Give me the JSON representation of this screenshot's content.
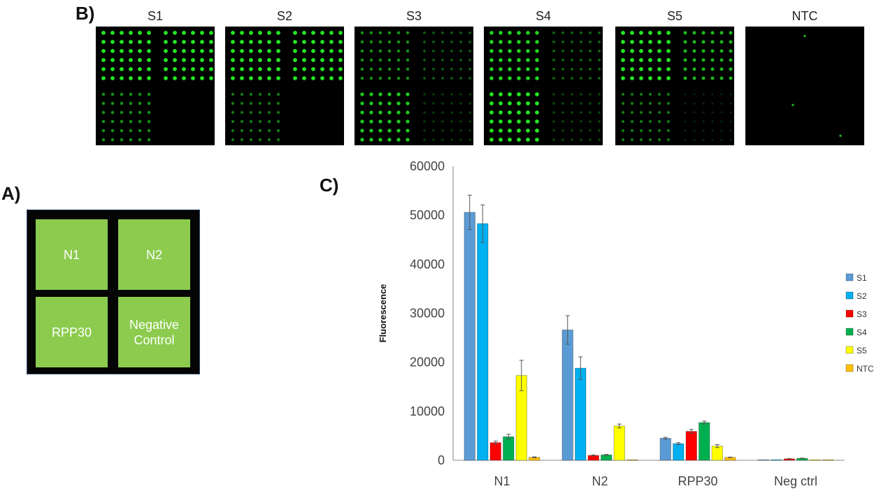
{
  "panel_labels": {
    "a": "A)",
    "b": "B)",
    "c": "C)"
  },
  "arrays": {
    "samples": [
      {
        "name": "S1",
        "tl": 1.0,
        "tr": 1.0,
        "bl": 0.55,
        "br": 0.0,
        "extras": []
      },
      {
        "name": "S2",
        "tl": 1.0,
        "tr": 1.0,
        "bl": 0.45,
        "br": 0.0,
        "extras": []
      },
      {
        "name": "S3",
        "tl": 0.55,
        "tr": 0.3,
        "bl": 0.85,
        "br": 0.15,
        "extras": []
      },
      {
        "name": "S4",
        "tl": 0.9,
        "tr": 0.35,
        "bl": 1.0,
        "br": 0.2,
        "extras": []
      },
      {
        "name": "S5",
        "tl": 1.0,
        "tr": 0.75,
        "bl": 0.45,
        "br": 0.05,
        "extras": []
      },
      {
        "name": "NTC",
        "tl": 0.0,
        "tr": 0.0,
        "bl": 0.0,
        "br": 0.0,
        "extras": [
          [
            0.5,
            0.08
          ],
          [
            0.4,
            0.66
          ],
          [
            0.8,
            0.92
          ]
        ]
      }
    ],
    "spot_color": "#22e822"
  },
  "layout_diagram": {
    "cells": {
      "n1": "N1",
      "n2": "N2",
      "rpp30": "RPP30",
      "neg": "Negative\nControl"
    },
    "fill_color": "#8ccb4e"
  },
  "chart_data": {
    "type": "bar",
    "categories": [
      "N1",
      "N2",
      "RPP30",
      "Neg ctrl"
    ],
    "series": [
      {
        "name": "S1",
        "color": "#5b9bd5",
        "values": [
          50600,
          26600,
          4500,
          100
        ],
        "errors": [
          3500,
          2900,
          200,
          0
        ]
      },
      {
        "name": "S2",
        "color": "#00b0f0",
        "values": [
          48300,
          18800,
          3400,
          100
        ],
        "errors": [
          3800,
          2300,
          200,
          0
        ]
      },
      {
        "name": "S3",
        "color": "#ff0000",
        "values": [
          3600,
          1000,
          5900,
          300
        ],
        "errors": [
          300,
          100,
          400,
          50
        ]
      },
      {
        "name": "S4",
        "color": "#00b050",
        "values": [
          4800,
          1100,
          7700,
          400
        ],
        "errors": [
          500,
          100,
          300,
          50
        ]
      },
      {
        "name": "S5",
        "color": "#ffff00",
        "values": [
          17300,
          7000,
          2900,
          100
        ],
        "errors": [
          3100,
          400,
          300,
          0
        ]
      },
      {
        "name": "NTC",
        "color": "#ffc000",
        "values": [
          600,
          100,
          600,
          100
        ],
        "errors": [
          100,
          0,
          50,
          0
        ]
      }
    ],
    "ylabel": "Fluorescence",
    "xlabel": "",
    "ylim": [
      0,
      60000
    ],
    "yticks": [
      "0",
      "10000",
      "20000",
      "30000",
      "40000",
      "50000",
      "60000"
    ],
    "legend_position": "right",
    "grid": false
  }
}
